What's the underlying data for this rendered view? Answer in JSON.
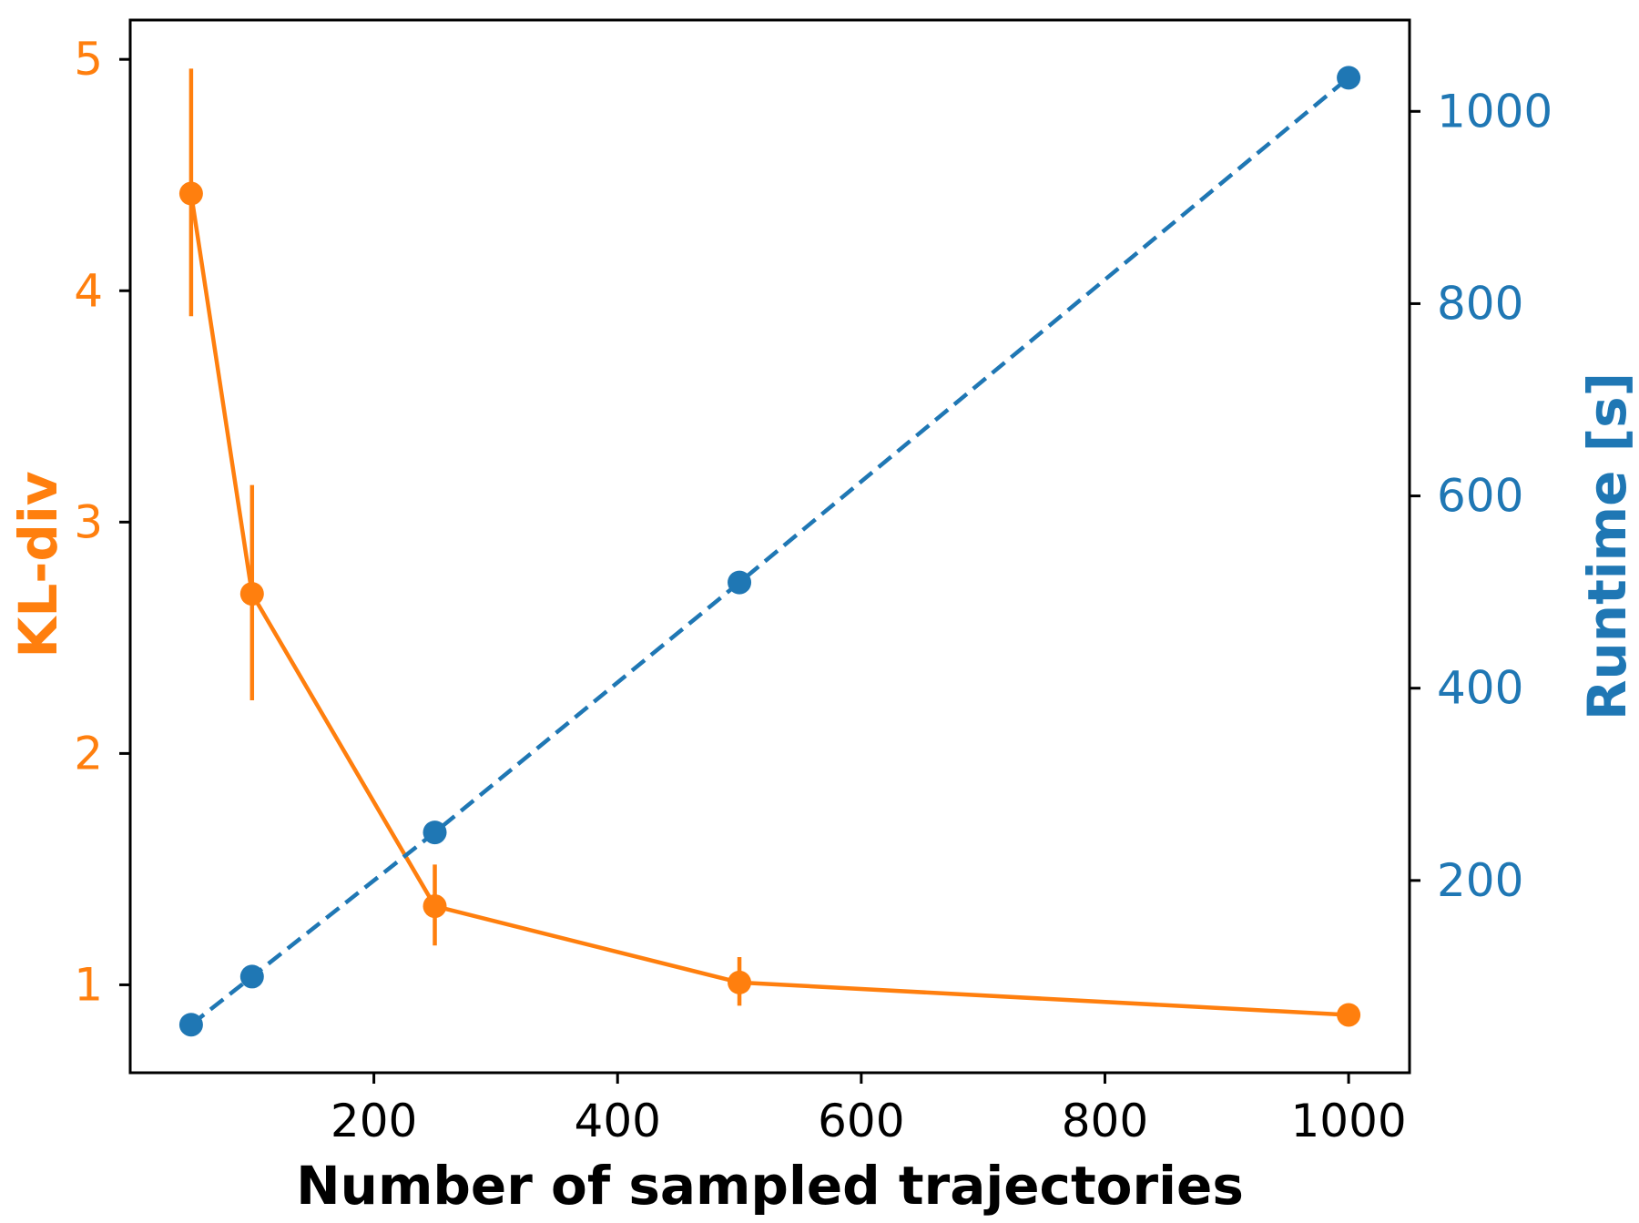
{
  "colors": {
    "kl": "#ff7f0e",
    "runtime": "#1f77b4",
    "axis": "#000000"
  },
  "chart_data": {
    "type": "line",
    "title": "",
    "xlabel": "Number of sampled trajectories",
    "ylabel_left": "KL-div",
    "ylabel_right": "Runtime [s]",
    "xlim": [
      0,
      1050
    ],
    "x_ticks": [
      200,
      400,
      600,
      800,
      1000
    ],
    "ylim_left": [
      0.62,
      5.17
    ],
    "y_ticks_left": [
      1,
      2,
      3,
      4,
      5
    ],
    "ylim_right": [
      0,
      1095
    ],
    "y_ticks_right": [
      200,
      400,
      600,
      800,
      1000
    ],
    "grid": false,
    "legend": "none",
    "series": [
      {
        "axis": "left",
        "style": "solid",
        "marker": "circle",
        "x": [
          50,
          100,
          250,
          500,
          1000
        ],
        "values": [
          4.42,
          2.69,
          1.34,
          1.01,
          0.87
        ],
        "error_low": [
          3.89,
          2.23,
          1.17,
          0.91,
          0.87
        ],
        "error_high": [
          4.96,
          3.16,
          1.52,
          1.12,
          0.87
        ]
      },
      {
        "axis": "right",
        "style": "dashed",
        "marker": "circle",
        "x": [
          50,
          100,
          250,
          500,
          1000
        ],
        "values": [
          50,
          100,
          250,
          510,
          1035
        ]
      }
    ]
  }
}
